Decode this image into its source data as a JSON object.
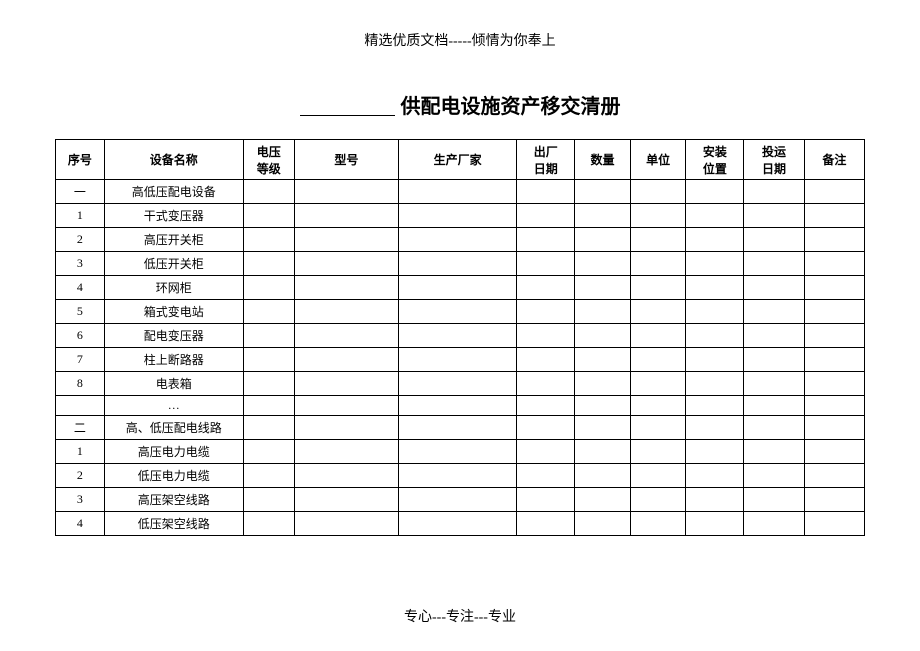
{
  "header": {
    "text": "精选优质文档-----倾情为你奉上"
  },
  "title": {
    "text": "供配电设施资产移交清册"
  },
  "table": {
    "columns": [
      {
        "label": "序号",
        "class": "col-seq"
      },
      {
        "label": "设备名称",
        "class": "col-name"
      },
      {
        "label": "电压等级",
        "class": "col-voltage"
      },
      {
        "label": "型号",
        "class": "col-model"
      },
      {
        "label": "生产厂家",
        "class": "col-mfr"
      },
      {
        "label": "出厂日期",
        "class": "col-outdate"
      },
      {
        "label": "数量",
        "class": "col-qty"
      },
      {
        "label": "单位",
        "class": "col-unit"
      },
      {
        "label": "安装位置",
        "class": "col-install"
      },
      {
        "label": "投运日期",
        "class": "col-rundate"
      },
      {
        "label": "备注",
        "class": "col-remarks"
      }
    ],
    "rows": [
      {
        "seq": "一",
        "name": "高低压配电设备",
        "voltage": "",
        "model": "",
        "mfr": "",
        "outdate": "",
        "qty": "",
        "unit": "",
        "install": "",
        "rundate": "",
        "remarks": ""
      },
      {
        "seq": "1",
        "name": "干式变压器",
        "voltage": "",
        "model": "",
        "mfr": "",
        "outdate": "",
        "qty": "",
        "unit": "",
        "install": "",
        "rundate": "",
        "remarks": ""
      },
      {
        "seq": "2",
        "name": "高压开关柜",
        "voltage": "",
        "model": "",
        "mfr": "",
        "outdate": "",
        "qty": "",
        "unit": "",
        "install": "",
        "rundate": "",
        "remarks": ""
      },
      {
        "seq": "3",
        "name": "低压开关柜",
        "voltage": "",
        "model": "",
        "mfr": "",
        "outdate": "",
        "qty": "",
        "unit": "",
        "install": "",
        "rundate": "",
        "remarks": ""
      },
      {
        "seq": "4",
        "name": "环网柜",
        "voltage": "",
        "model": "",
        "mfr": "",
        "outdate": "",
        "qty": "",
        "unit": "",
        "install": "",
        "rundate": "",
        "remarks": ""
      },
      {
        "seq": "5",
        "name": "箱式变电站",
        "voltage": "",
        "model": "",
        "mfr": "",
        "outdate": "",
        "qty": "",
        "unit": "",
        "install": "",
        "rundate": "",
        "remarks": ""
      },
      {
        "seq": "6",
        "name": "配电变压器",
        "voltage": "",
        "model": "",
        "mfr": "",
        "outdate": "",
        "qty": "",
        "unit": "",
        "install": "",
        "rundate": "",
        "remarks": ""
      },
      {
        "seq": "7",
        "name": "柱上断路器",
        "voltage": "",
        "model": "",
        "mfr": "",
        "outdate": "",
        "qty": "",
        "unit": "",
        "install": "",
        "rundate": "",
        "remarks": ""
      },
      {
        "seq": "8",
        "name": "电表箱",
        "voltage": "",
        "model": "",
        "mfr": "",
        "outdate": "",
        "qty": "",
        "unit": "",
        "install": "",
        "rundate": "",
        "remarks": ""
      },
      {
        "seq": "",
        "name": "…",
        "voltage": "",
        "model": "",
        "mfr": "",
        "outdate": "",
        "qty": "",
        "unit": "",
        "install": "",
        "rundate": "",
        "remarks": "",
        "short": true
      },
      {
        "seq": "二",
        "name": "高、低压配电线路",
        "voltage": "",
        "model": "",
        "mfr": "",
        "outdate": "",
        "qty": "",
        "unit": "",
        "install": "",
        "rundate": "",
        "remarks": ""
      },
      {
        "seq": "1",
        "name": "高压电力电缆",
        "voltage": "",
        "model": "",
        "mfr": "",
        "outdate": "",
        "qty": "",
        "unit": "",
        "install": "",
        "rundate": "",
        "remarks": ""
      },
      {
        "seq": "2",
        "name": "低压电力电缆",
        "voltage": "",
        "model": "",
        "mfr": "",
        "outdate": "",
        "qty": "",
        "unit": "",
        "install": "",
        "rundate": "",
        "remarks": ""
      },
      {
        "seq": "3",
        "name": "高压架空线路",
        "voltage": "",
        "model": "",
        "mfr": "",
        "outdate": "",
        "qty": "",
        "unit": "",
        "install": "",
        "rundate": "",
        "remarks": ""
      },
      {
        "seq": "4",
        "name": "低压架空线路",
        "voltage": "",
        "model": "",
        "mfr": "",
        "outdate": "",
        "qty": "",
        "unit": "",
        "install": "",
        "rundate": "",
        "remarks": ""
      }
    ]
  },
  "footer": {
    "text": "专心---专注---专业"
  }
}
